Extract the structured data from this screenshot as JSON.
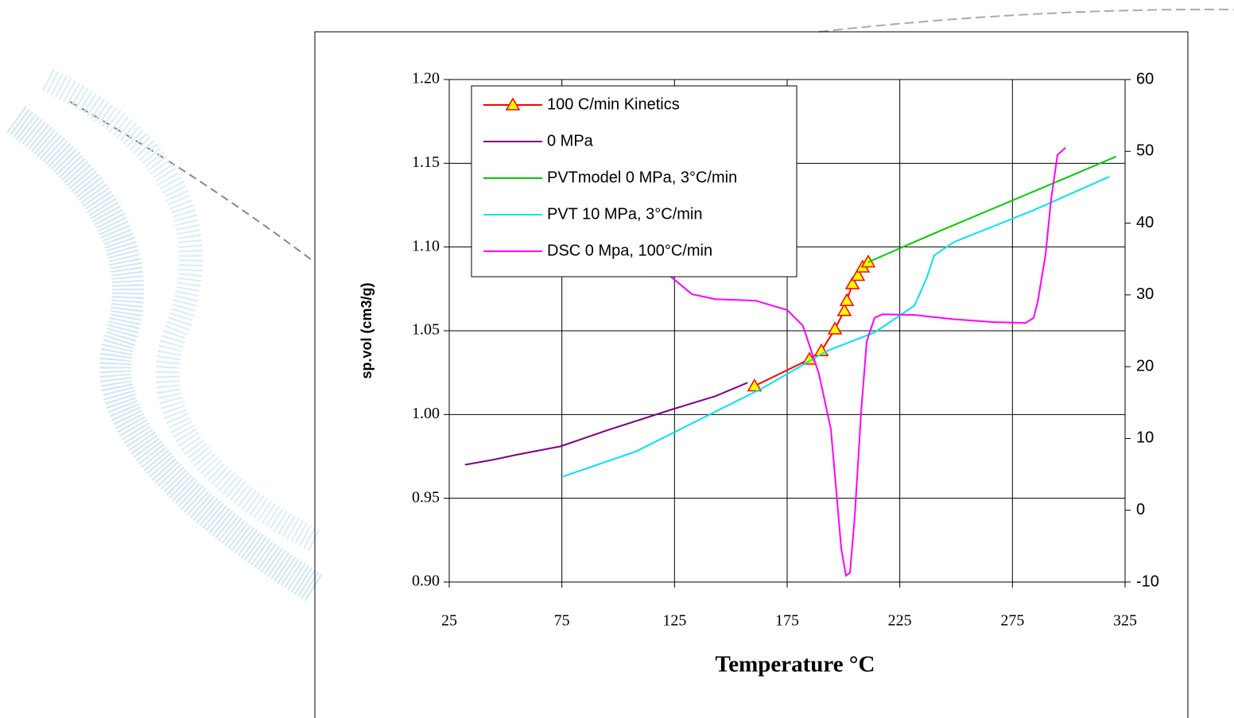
{
  "chart_data": {
    "type": "line",
    "xlabel": "Temperature °C",
    "ylabel": "sp.vol (cm3/g)",
    "xlim": [
      25,
      325
    ],
    "xticks": [
      25,
      75,
      125,
      175,
      225,
      275,
      325
    ],
    "ylim": [
      0.9,
      1.2
    ],
    "yticks": [
      {
        "value": 0.9,
        "label": "0.90"
      },
      {
        "value": 0.95,
        "label": "0.95"
      },
      {
        "value": 1.0,
        "label": "1.00"
      },
      {
        "value": 1.05,
        "label": "1.05"
      },
      {
        "value": 1.1,
        "label": "1.10"
      },
      {
        "value": 1.15,
        "label": "1.15"
      },
      {
        "value": 1.2,
        "label": "1.20"
      }
    ],
    "y2lim": [
      -10,
      60
    ],
    "y2ticks": [
      -10,
      0,
      10,
      20,
      30,
      40,
      50,
      60
    ],
    "grid": true,
    "series": [
      {
        "name": "100 C/min Kinetics",
        "color": "#ff0000",
        "marker": "triangle",
        "x": [
          160.5,
          184.9,
          190.2,
          196.2,
          200.4,
          201.5,
          204,
          206.4,
          208.5,
          211
        ],
        "values": [
          1.017,
          1.033,
          1.038,
          1.051,
          1.062,
          1.068,
          1.078,
          1.083,
          1.088,
          1.091
        ]
      },
      {
        "name": "0 MPa",
        "color": "#800080",
        "x": [
          32,
          44.4,
          55,
          74.4,
          93.8,
          123.8,
          143.2,
          157.4
        ],
        "values": [
          0.97,
          0.973,
          0.976,
          0.981,
          0.99,
          1.003,
          1.011,
          1.019
        ]
      },
      {
        "name": "PVTmodel 0 MPa, 3°C/min",
        "color": "#00cc00",
        "x": [
          211,
          240,
          270,
          300,
          321
        ],
        "values": [
          1.091,
          1.108,
          1.125,
          1.142,
          1.154
        ]
      },
      {
        "name": "PVT 10 MPa, 3°C/min",
        "color": "#00e5ee",
        "x": [
          75.5,
          108,
          136.2,
          164.4,
          192.7,
          213.8,
          231.5,
          236.8,
          240.3,
          249.1,
          284.4,
          318
        ],
        "values": [
          0.963,
          0.978,
          0.997,
          1.016,
          1.038,
          1.049,
          1.065,
          1.081,
          1.095,
          1.103,
          1.122,
          1.142
        ]
      },
      {
        "name": "DSC 0 Mpa, 100°C/min",
        "color": "#ff00ff",
        "axis": "y2",
        "x": [
          122,
          132.7,
          143.2,
          160.9,
          175,
          182,
          189.1,
          194.4,
          196.9,
          199,
          201.1,
          202.9,
          205,
          207.8,
          210.3,
          213.8,
          217.4,
          231.5,
          249.1,
          266.8,
          280.9,
          284.4,
          286.2,
          289.7,
          292.2,
          295,
          298.6
        ],
        "values": [
          32.9,
          30.1,
          29.4,
          29.2,
          27.9,
          25.7,
          19.0,
          11.3,
          2.4,
          -5.3,
          -9.1,
          -8.7,
          -0.9,
          13.5,
          23.5,
          26.8,
          27.3,
          27.2,
          26.6,
          26.2,
          26.1,
          26.8,
          29.0,
          35.6,
          43.4,
          49.5,
          50.5
        ]
      }
    ]
  }
}
